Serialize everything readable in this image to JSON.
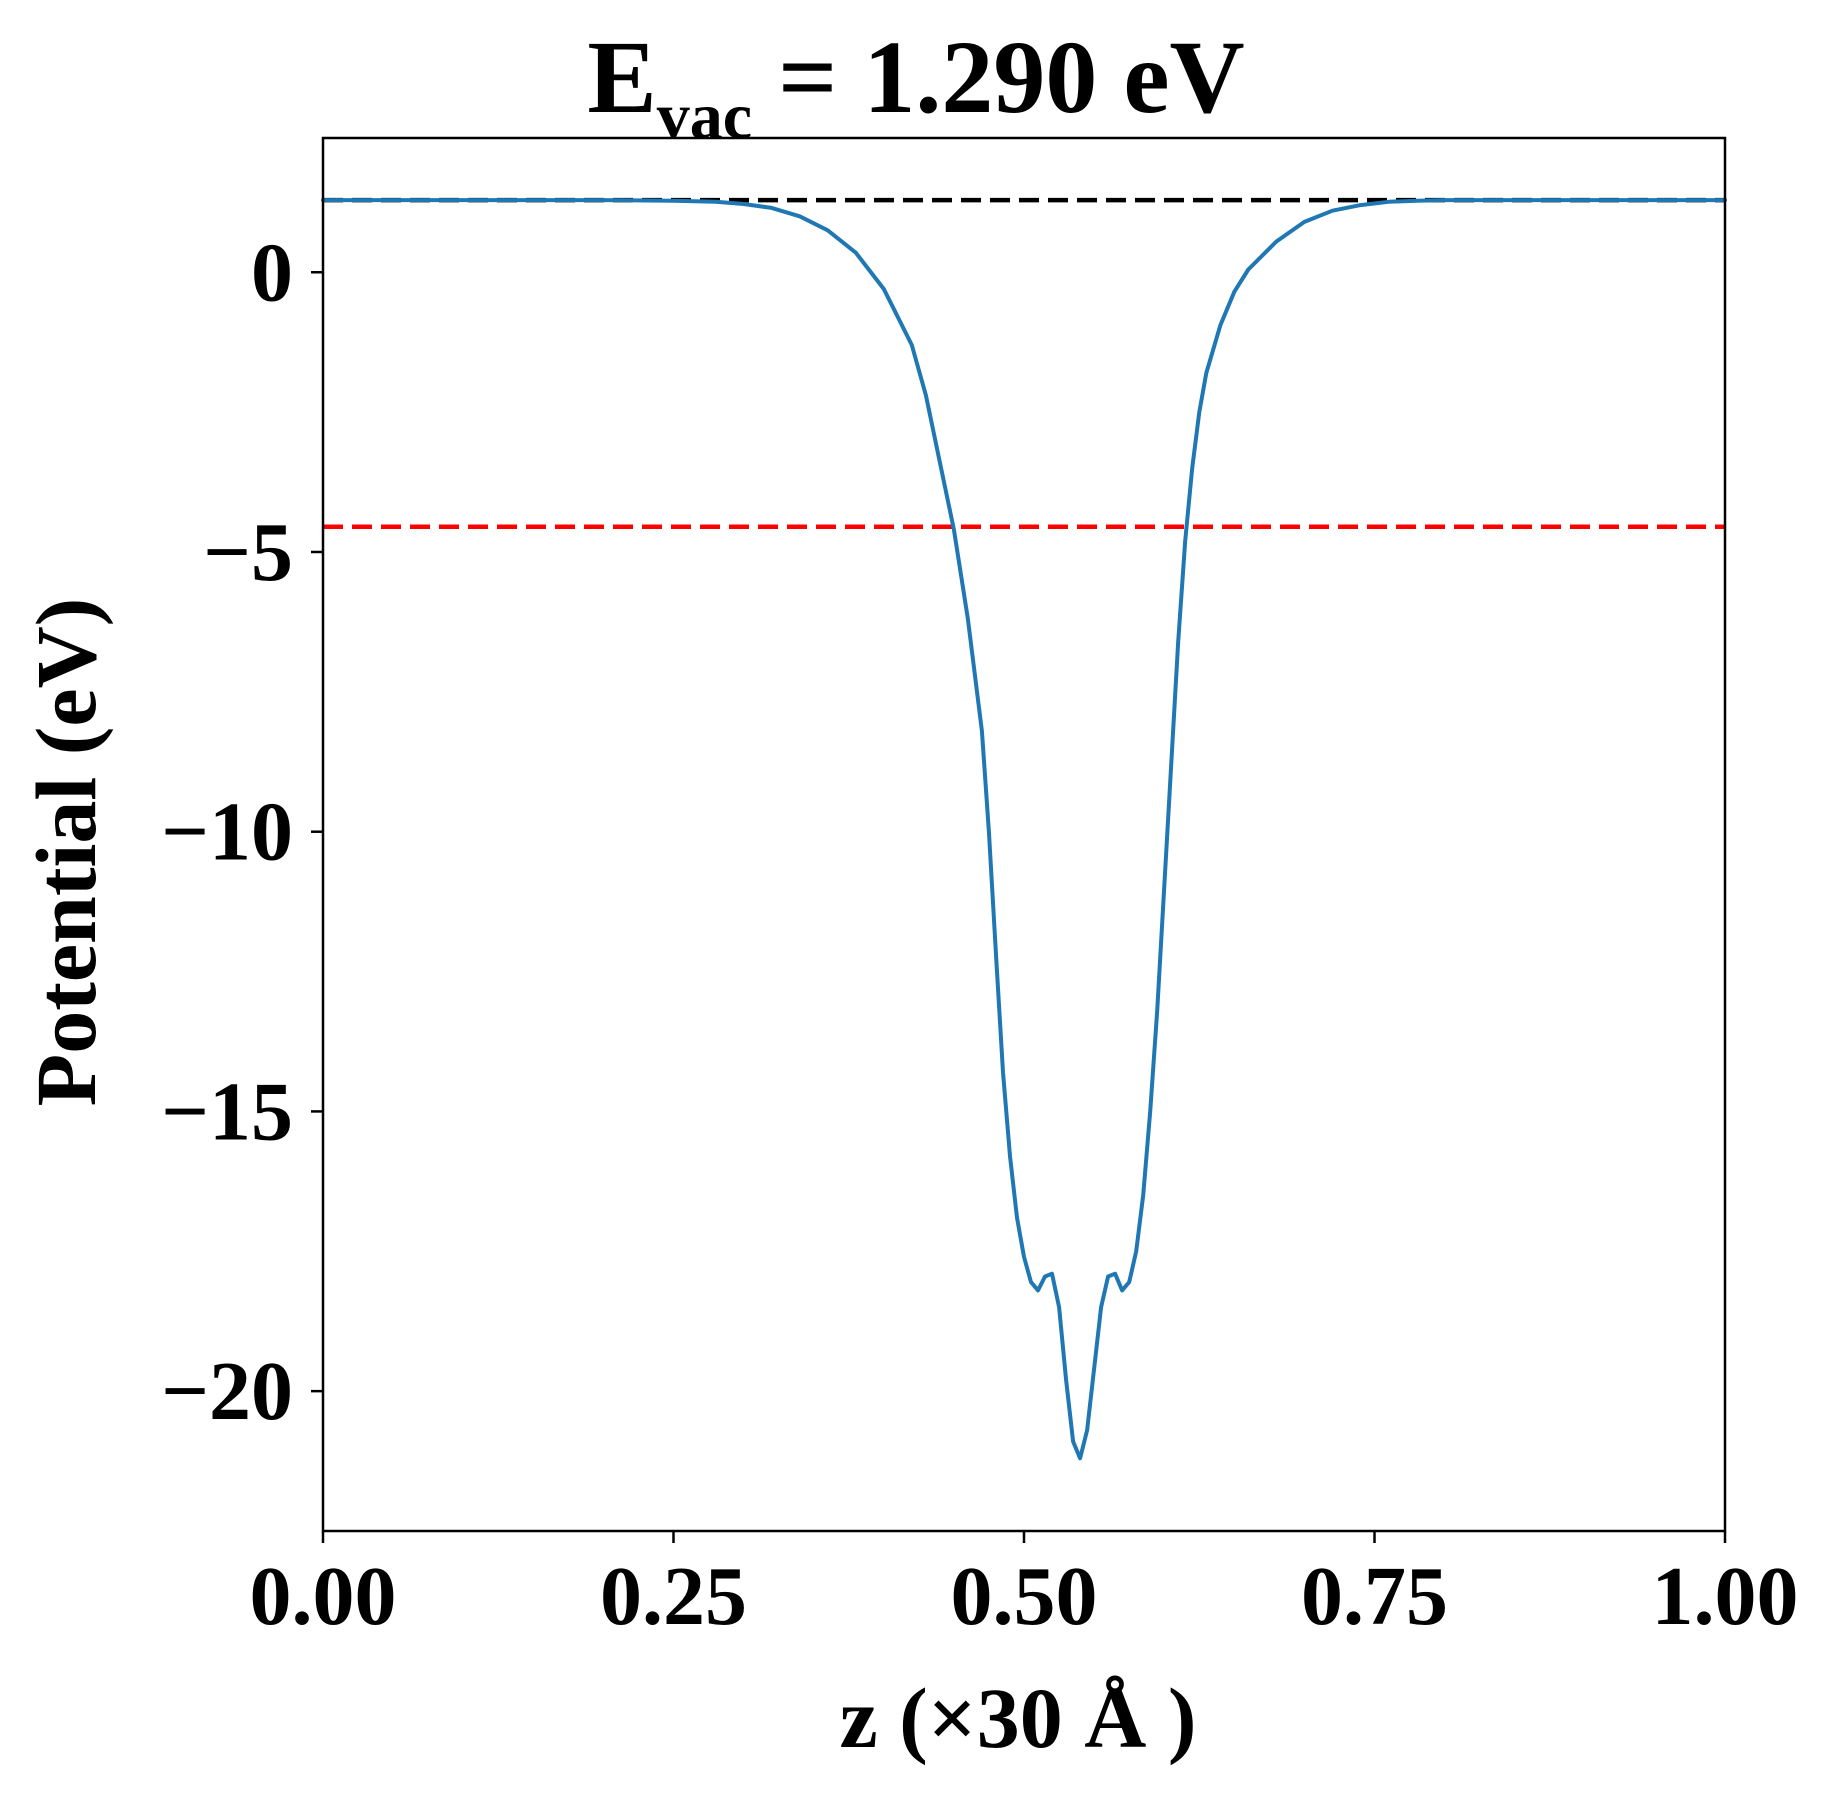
{
  "chart_data": {
    "type": "line",
    "title": {
      "prefix": "E",
      "subscript": "vac",
      "suffix": " = 1.290 eV"
    },
    "xlabel": "z (×30 Å )",
    "ylabel": "Potential (eV)",
    "xlim": [
      0.0,
      1.0
    ],
    "ylim": [
      -22.5,
      2.4
    ],
    "x_ticks": [
      {
        "value": 0.0,
        "label": "0.00"
      },
      {
        "value": 0.25,
        "label": "0.25"
      },
      {
        "value": 0.5,
        "label": "0.50"
      },
      {
        "value": 0.75,
        "label": "0.75"
      },
      {
        "value": 1.0,
        "label": "1.00"
      }
    ],
    "y_ticks": [
      {
        "value": 0,
        "label": "0"
      },
      {
        "value": -5,
        "label": "−5"
      },
      {
        "value": -10,
        "label": "−10"
      },
      {
        "value": -15,
        "label": "−15"
      },
      {
        "value": -20,
        "label": "−20"
      }
    ],
    "grid": false,
    "legend": "none",
    "reference_lines": [
      {
        "y": 1.29,
        "color": "#000000",
        "style": "dashed"
      },
      {
        "y": -4.55,
        "color": "#ff0000",
        "style": "dashed"
      }
    ],
    "series": [
      {
        "color": "#1f77b4",
        "x": [
          0.0,
          0.05,
          0.1,
          0.15,
          0.2,
          0.25,
          0.28,
          0.3,
          0.32,
          0.34,
          0.36,
          0.38,
          0.4,
          0.42,
          0.43,
          0.44,
          0.45,
          0.46,
          0.47,
          0.475,
          0.48,
          0.485,
          0.49,
          0.495,
          0.5,
          0.505,
          0.51,
          0.515,
          0.52,
          0.525,
          0.53,
          0.535,
          0.54,
          0.545,
          0.55,
          0.555,
          0.56,
          0.565,
          0.57,
          0.575,
          0.58,
          0.585,
          0.59,
          0.595,
          0.6,
          0.605,
          0.61,
          0.615,
          0.62,
          0.625,
          0.63,
          0.64,
          0.65,
          0.66,
          0.68,
          0.7,
          0.72,
          0.74,
          0.76,
          0.78,
          0.8,
          0.85,
          0.9,
          0.95,
          1.0
        ],
        "y": [
          1.29,
          1.29,
          1.29,
          1.29,
          1.29,
          1.28,
          1.26,
          1.22,
          1.15,
          1.0,
          0.75,
          0.35,
          -0.3,
          -1.3,
          -2.2,
          -3.4,
          -4.6,
          -6.2,
          -8.2,
          -10.0,
          -12.2,
          -14.3,
          -15.8,
          -16.9,
          -17.6,
          -18.05,
          -18.2,
          -17.95,
          -17.9,
          -18.5,
          -19.8,
          -20.9,
          -21.2,
          -20.7,
          -19.6,
          -18.5,
          -17.95,
          -17.9,
          -18.2,
          -18.05,
          -17.5,
          -16.5,
          -15.0,
          -13.2,
          -11.0,
          -8.8,
          -6.6,
          -4.8,
          -3.5,
          -2.5,
          -1.8,
          -0.95,
          -0.35,
          0.05,
          0.55,
          0.9,
          1.1,
          1.2,
          1.26,
          1.28,
          1.29,
          1.29,
          1.29,
          1.29,
          1.29
        ]
      }
    ]
  }
}
